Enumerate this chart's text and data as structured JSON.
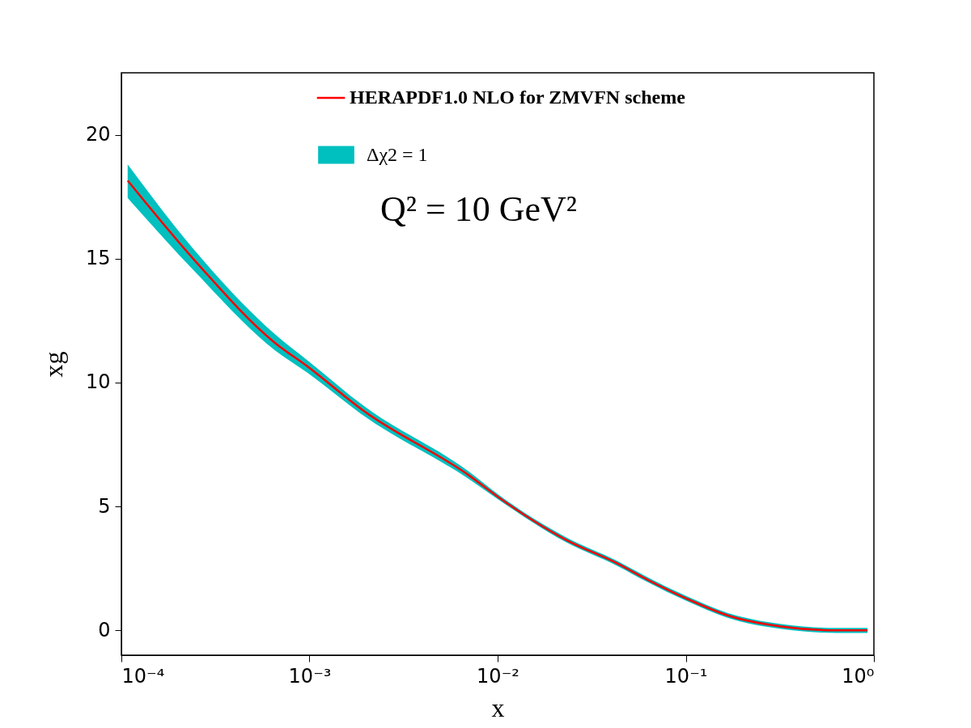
{
  "chart_data": {
    "type": "line",
    "xlabel": "x",
    "ylabel": "xg",
    "log": "x",
    "x": [
      0.000108,
      0.000244,
      0.000656,
      0.000975,
      0.00195,
      0.00706,
      0.01,
      0.0232,
      0.0433,
      0.0625,
      0.1,
      0.168,
      0.327,
      0.628,
      0.925
    ],
    "series": [
      {
        "name": "HERAPDF1.0 NLO for ZMVFN scheme",
        "color": "#ff0000",
        "values": [
          18.15,
          14.95,
          11.6,
          10.65,
          8.85,
          6.25,
          5.4,
          3.65,
          2.7,
          2.05,
          1.3,
          0.6,
          0.15,
          0.0,
          0.0
        ],
        "lower": [
          17.45,
          14.5,
          11.3,
          10.4,
          8.65,
          6.1,
          5.3,
          3.55,
          2.6,
          1.95,
          1.2,
          0.5,
          0.05,
          -0.1,
          -0.1
        ],
        "upper": [
          18.8,
          15.35,
          11.95,
          10.9,
          9.05,
          6.4,
          5.5,
          3.75,
          2.8,
          2.15,
          1.4,
          0.7,
          0.25,
          0.1,
          0.1
        ]
      }
    ],
    "xlim": [
      0.0001,
      1
    ],
    "xticks": [
      {
        "value": 0.0001,
        "label": "10⁻⁴"
      },
      {
        "value": 0.001,
        "label": "10⁻³"
      },
      {
        "value": 0.01,
        "label": "10⁻²"
      },
      {
        "value": 0.1,
        "label": "10⁻¹"
      },
      {
        "value": 1,
        "label": "10⁰"
      }
    ],
    "ylim": [
      -1,
      22.5
    ],
    "yticks": [
      0,
      5,
      10,
      15,
      20
    ],
    "annotations": [
      "Δχ2 = 1",
      "Q² = 10 GeV²"
    ],
    "legend": "top right",
    "grid": false
  }
}
